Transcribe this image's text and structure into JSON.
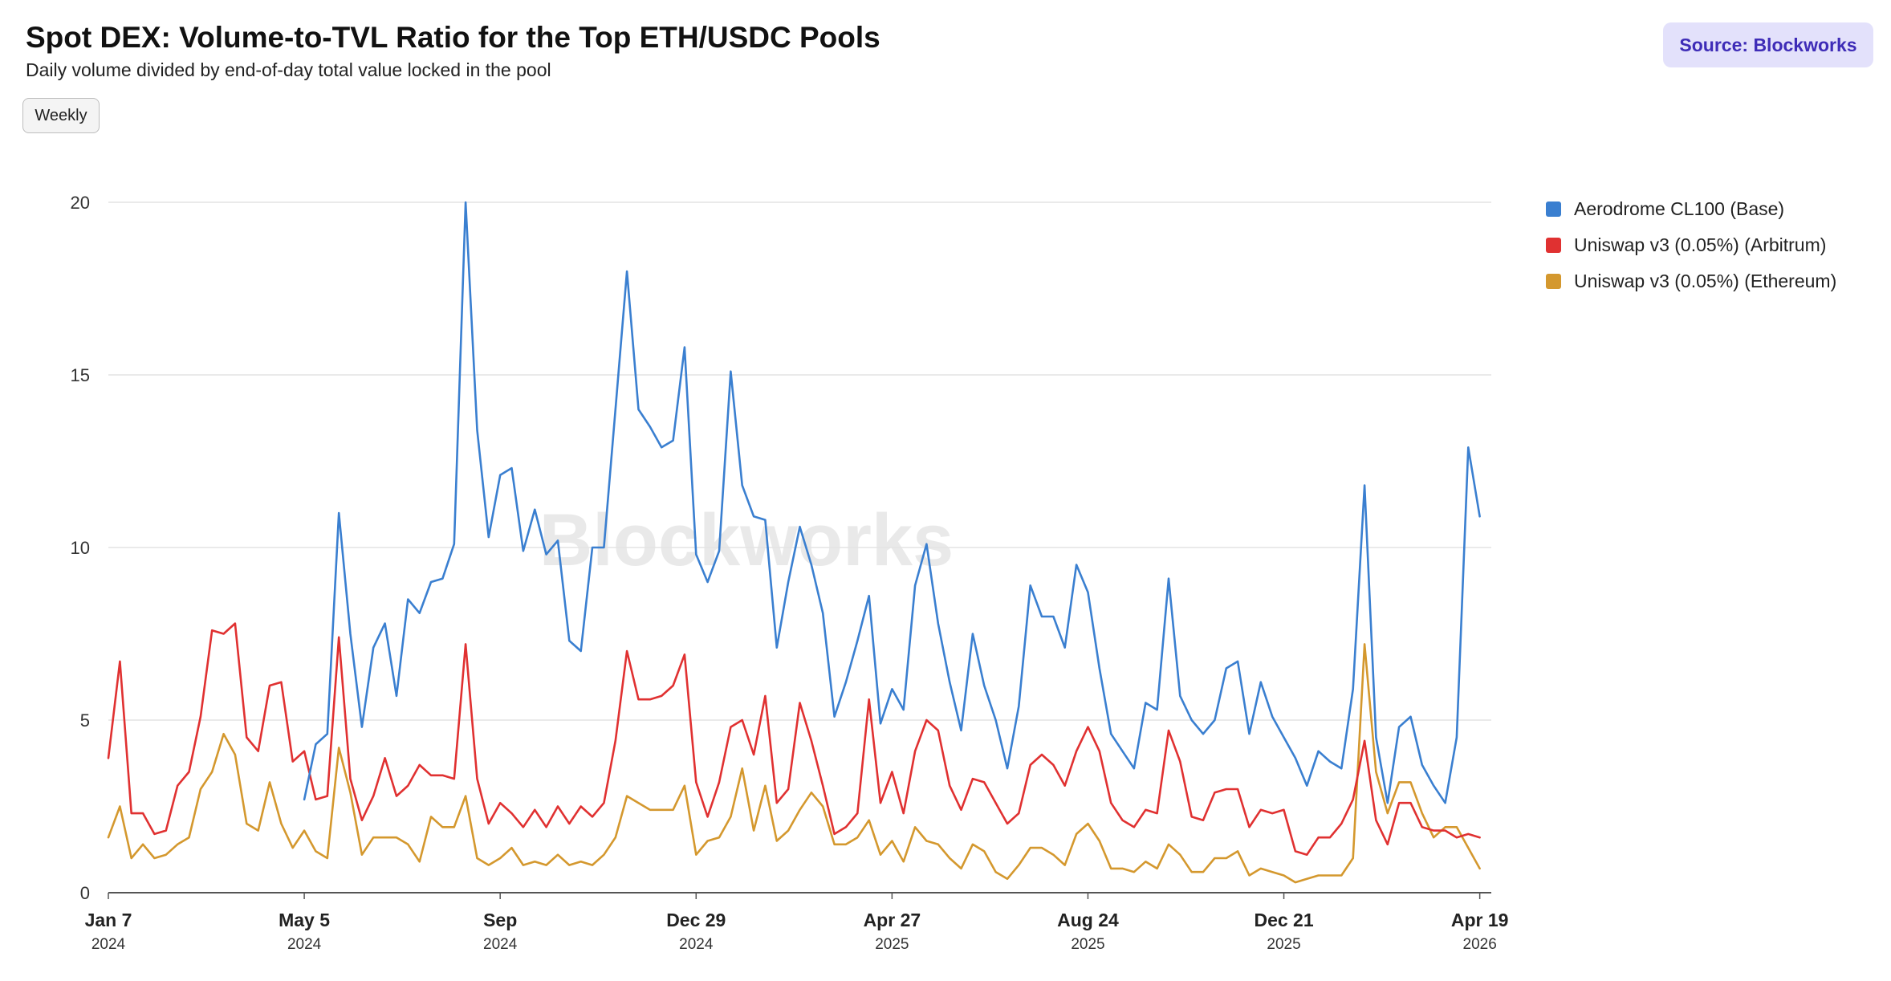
{
  "header": {
    "title": "Spot DEX: Volume-to-TVL Ratio for the Top ETH/USDC Pools",
    "subtitle": "Daily volume divided by end-of-day total value locked in the pool",
    "source_label": "Source: Blockworks",
    "interval_button": "Weekly"
  },
  "watermark": "Blockworks",
  "chart_data": {
    "type": "line",
    "title": "Spot DEX: Volume-to-TVL Ratio for the Top ETH/USDC Pools",
    "subtitle": "Daily volume divided by end-of-day total value locked in the pool",
    "xlabel": "",
    "ylabel": "",
    "x_range": [
      "2024-01-07",
      "2026-04-26"
    ],
    "ylim": [
      0,
      20
    ],
    "y_ticks": [
      "0",
      "5",
      "10",
      "15",
      "20"
    ],
    "x_ticks": [
      {
        "label": "Jan 7",
        "year": "2024",
        "date": "2024-01-07"
      },
      {
        "label": "May 5",
        "year": "2024",
        "date": "2024-05-05"
      },
      {
        "label": "Sep",
        "year": "2024",
        "date": "2024-09-01"
      },
      {
        "label": "Dec 29",
        "year": "2024",
        "date": "2024-12-29"
      },
      {
        "label": "Apr 27",
        "year": "2025",
        "date": "2025-04-27"
      },
      {
        "label": "Aug 24",
        "year": "2025",
        "date": "2025-08-24"
      },
      {
        "label": "Dec 21",
        "year": "2025",
        "date": "2025-12-21"
      },
      {
        "label": "Apr 19",
        "year": "2026",
        "date": "2026-04-19"
      }
    ],
    "grid": "horizontal",
    "legend": "right",
    "series": [
      {
        "name": "Aerodrome CL100 (Base)",
        "color": "#3a7fd0",
        "start": "2024-05-05",
        "values": [
          2.7,
          4.3,
          4.6,
          11.0,
          7.5,
          4.8,
          7.1,
          7.8,
          5.7,
          8.5,
          8.1,
          9.0,
          9.1,
          10.1,
          20.0,
          13.4,
          10.3,
          12.1,
          12.3,
          9.9,
          11.1,
          9.8,
          10.2,
          7.3,
          7.0,
          10.0,
          10.0,
          14.0,
          18.0,
          14.0,
          13.5,
          12.9,
          13.1,
          15.8,
          9.8,
          9.0,
          9.9,
          15.1,
          11.8,
          10.9,
          10.8,
          7.1,
          9.0,
          10.6,
          9.5,
          8.1,
          5.1,
          6.1,
          7.3,
          8.6,
          4.9,
          5.9,
          5.3,
          8.9,
          10.1,
          7.8,
          6.1,
          4.7,
          7.5,
          6.0,
          5.0,
          3.6,
          5.4,
          8.9,
          8.0,
          8.0,
          7.1,
          9.5,
          8.7,
          6.5,
          4.6,
          4.1,
          3.6,
          5.5,
          5.3,
          9.1,
          5.7,
          5.0,
          4.6,
          5.0,
          6.5,
          6.7,
          4.6,
          6.1,
          5.1,
          4.5,
          3.9,
          3.1,
          4.1,
          3.8,
          3.6,
          5.9,
          11.8,
          4.5,
          2.6,
          4.8,
          5.1,
          3.7,
          3.1,
          2.6,
          4.5,
          12.9,
          10.9
        ]
      },
      {
        "name": "Uniswap v3 (0.05%) (Arbitrum)",
        "color": "#e03131",
        "start": "2024-01-07",
        "values": [
          3.9,
          6.7,
          2.3,
          2.3,
          1.7,
          1.8,
          3.1,
          3.5,
          5.1,
          7.6,
          7.5,
          7.8,
          4.5,
          4.1,
          6.0,
          6.1,
          3.8,
          4.1,
          2.7,
          2.8,
          7.4,
          3.3,
          2.1,
          2.8,
          3.9,
          2.8,
          3.1,
          3.7,
          3.4,
          3.4,
          3.3,
          7.2,
          3.3,
          2.0,
          2.6,
          2.3,
          1.9,
          2.4,
          1.9,
          2.5,
          2.0,
          2.5,
          2.2,
          2.6,
          4.4,
          7.0,
          5.6,
          5.6,
          5.7,
          6.0,
          6.9,
          3.2,
          2.2,
          3.2,
          4.8,
          5.0,
          4.0,
          5.7,
          2.6,
          3.0,
          5.5,
          4.4,
          3.1,
          1.7,
          1.9,
          2.3,
          5.6,
          2.6,
          3.5,
          2.3,
          4.1,
          5.0,
          4.7,
          3.1,
          2.4,
          3.3,
          3.2,
          2.6,
          2.0,
          2.3,
          3.7,
          4.0,
          3.7,
          3.1,
          4.1,
          4.8,
          4.1,
          2.6,
          2.1,
          1.9,
          2.4,
          2.3,
          4.7,
          3.8,
          2.2,
          2.1,
          2.9,
          3.0,
          3.0,
          1.9,
          2.4,
          2.3,
          2.4,
          1.2,
          1.1,
          1.6,
          1.6,
          2.0,
          2.7,
          4.4,
          2.1,
          1.4,
          2.6,
          2.6,
          1.9,
          1.8,
          1.8,
          1.6,
          1.7,
          1.6
        ]
      },
      {
        "name": "Uniswap v3 (0.05%) (Ethereum)",
        "color": "#d4982e",
        "start": "2024-01-07",
        "values": [
          1.6,
          2.5,
          1.0,
          1.4,
          1.0,
          1.1,
          1.4,
          1.6,
          3.0,
          3.5,
          4.6,
          4.0,
          2.0,
          1.8,
          3.2,
          2.0,
          1.3,
          1.8,
          1.2,
          1.0,
          4.2,
          2.9,
          1.1,
          1.6,
          1.6,
          1.6,
          1.4,
          0.9,
          2.2,
          1.9,
          1.9,
          2.8,
          1.0,
          0.8,
          1.0,
          1.3,
          0.8,
          0.9,
          0.8,
          1.1,
          0.8,
          0.9,
          0.8,
          1.1,
          1.6,
          2.8,
          2.6,
          2.4,
          2.4,
          2.4,
          3.1,
          1.1,
          1.5,
          1.6,
          2.2,
          3.6,
          1.8,
          3.1,
          1.5,
          1.8,
          2.4,
          2.9,
          2.5,
          1.4,
          1.4,
          1.6,
          2.1,
          1.1,
          1.5,
          0.9,
          1.9,
          1.5,
          1.4,
          1.0,
          0.7,
          1.4,
          1.2,
          0.6,
          0.4,
          0.8,
          1.3,
          1.3,
          1.1,
          0.8,
          1.7,
          2.0,
          1.5,
          0.7,
          0.7,
          0.6,
          0.9,
          0.7,
          1.4,
          1.1,
          0.6,
          0.6,
          1.0,
          1.0,
          1.2,
          0.5,
          0.7,
          0.6,
          0.5,
          0.3,
          0.4,
          0.5,
          0.5,
          0.5,
          1.0,
          7.2,
          3.5,
          2.3,
          3.2,
          3.2,
          2.3,
          1.6,
          1.9,
          1.9,
          1.3,
          0.7
        ]
      }
    ]
  }
}
